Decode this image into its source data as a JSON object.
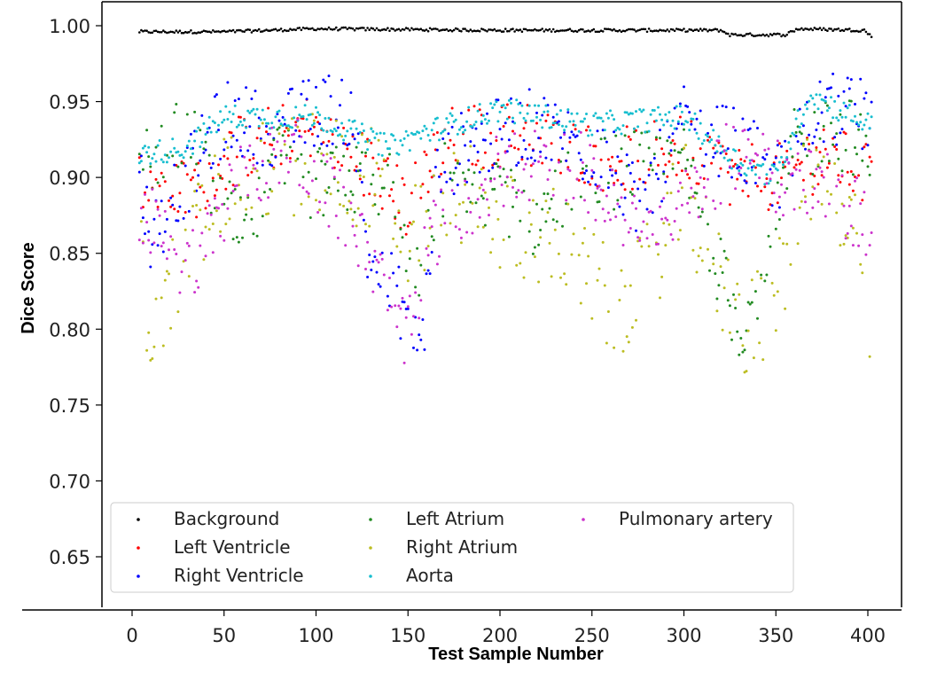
{
  "chart_data": {
    "type": "scatter",
    "title": "",
    "xlabel": "Test Sample Number",
    "ylabel": "Dice Score",
    "xlim": [
      -15,
      415
    ],
    "ylim": [
      0.62,
      1.015
    ],
    "xticks": [
      0,
      50,
      100,
      150,
      200,
      250,
      300,
      350,
      400
    ],
    "xtick_labels": [
      "0",
      "50",
      "100",
      "150",
      "200",
      "250",
      "300",
      "350",
      "400"
    ],
    "yticks": [
      0.65,
      0.7,
      0.75,
      0.8,
      0.85,
      0.9,
      0.95,
      1.0
    ],
    "ytick_labels": [
      "0.65",
      "0.70",
      "0.75",
      "0.80",
      "0.85",
      "0.90",
      "0.95",
      "1.00"
    ],
    "grid": false,
    "legend_position": "lower-left",
    "legend_columns": 3,
    "series": [
      {
        "name": "Background",
        "color": "#000000",
        "x_range": [
          4,
          402
        ],
        "anchors": [
          [
            4,
            0.996
          ],
          [
            50,
            0.996
          ],
          [
            100,
            0.998
          ],
          [
            200,
            0.997
          ],
          [
            320,
            0.997
          ],
          [
            325,
            0.994
          ],
          [
            355,
            0.994
          ],
          [
            362,
            0.998
          ],
          [
            398,
            0.997
          ],
          [
            402,
            0.993
          ]
        ],
        "noise": 0.001,
        "density": 1
      },
      {
        "name": "Left Ventricle",
        "color": "#ff0000",
        "x_range": [
          4,
          402
        ],
        "anchors": [
          [
            4,
            0.9
          ],
          [
            30,
            0.89
          ],
          [
            60,
            0.92
          ],
          [
            100,
            0.935
          ],
          [
            130,
            0.905
          ],
          [
            150,
            0.88
          ],
          [
            170,
            0.925
          ],
          [
            220,
            0.93
          ],
          [
            260,
            0.91
          ],
          [
            300,
            0.92
          ],
          [
            330,
            0.9
          ],
          [
            350,
            0.9
          ],
          [
            380,
            0.915
          ],
          [
            400,
            0.9
          ]
        ],
        "noise": 0.022,
        "density": 0.85
      },
      {
        "name": "Right Ventricle",
        "color": "#0000ff",
        "x_range": [
          4,
          402
        ],
        "anchors": [
          [
            4,
            0.91
          ],
          [
            10,
            0.86
          ],
          [
            30,
            0.9
          ],
          [
            50,
            0.94
          ],
          [
            80,
            0.93
          ],
          [
            100,
            0.945
          ],
          [
            120,
            0.945
          ],
          [
            128,
            0.85
          ],
          [
            140,
            0.83
          ],
          [
            150,
            0.81
          ],
          [
            158,
            0.79
          ],
          [
            165,
            0.9
          ],
          [
            180,
            0.92
          ],
          [
            220,
            0.935
          ],
          [
            260,
            0.91
          ],
          [
            275,
            0.88
          ],
          [
            300,
            0.935
          ],
          [
            330,
            0.92
          ],
          [
            350,
            0.9
          ],
          [
            375,
            0.945
          ],
          [
            400,
            0.94
          ]
        ],
        "noise": 0.025,
        "density": 0.9
      },
      {
        "name": "Left Atrium",
        "color": "#228b22",
        "x_range": [
          4,
          402
        ],
        "anchors": [
          [
            4,
            0.91
          ],
          [
            30,
            0.93
          ],
          [
            50,
            0.88
          ],
          [
            60,
            0.86
          ],
          [
            80,
            0.91
          ],
          [
            100,
            0.895
          ],
          [
            140,
            0.9
          ],
          [
            155,
            0.83
          ],
          [
            170,
            0.9
          ],
          [
            200,
            0.89
          ],
          [
            220,
            0.87
          ],
          [
            240,
            0.9
          ],
          [
            300,
            0.91
          ],
          [
            330,
            0.8
          ],
          [
            345,
            0.84
          ],
          [
            360,
            0.92
          ],
          [
            390,
            0.93
          ],
          [
            400,
            0.91
          ]
        ],
        "noise": 0.025,
        "density": 0.75
      },
      {
        "name": "Right Atrium",
        "color": "#bcbd22",
        "x_range": [
          4,
          402
        ],
        "anchors": [
          [
            4,
            0.86
          ],
          [
            10,
            0.8
          ],
          [
            30,
            0.85
          ],
          [
            50,
            0.9
          ],
          [
            100,
            0.91
          ],
          [
            130,
            0.9
          ],
          [
            150,
            0.86
          ],
          [
            180,
            0.89
          ],
          [
            200,
            0.87
          ],
          [
            230,
            0.86
          ],
          [
            250,
            0.83
          ],
          [
            270,
            0.81
          ],
          [
            300,
            0.89
          ],
          [
            330,
            0.8
          ],
          [
            350,
            0.82
          ],
          [
            370,
            0.91
          ],
          [
            395,
            0.85
          ],
          [
            402,
            0.8
          ]
        ],
        "noise": 0.035,
        "density": 0.7
      },
      {
        "name": "Aorta",
        "color": "#17becf",
        "x_range": [
          4,
          402
        ],
        "anchors": [
          [
            4,
            0.915
          ],
          [
            30,
            0.92
          ],
          [
            50,
            0.94
          ],
          [
            100,
            0.94
          ],
          [
            140,
            0.92
          ],
          [
            160,
            0.93
          ],
          [
            200,
            0.945
          ],
          [
            250,
            0.935
          ],
          [
            300,
            0.94
          ],
          [
            330,
            0.91
          ],
          [
            350,
            0.9
          ],
          [
            368,
            0.955
          ],
          [
            400,
            0.935
          ]
        ],
        "noise": 0.008,
        "density": 1
      },
      {
        "name": "Pulmonary artery",
        "color": "#cc33cc",
        "x_range": [
          4,
          402
        ],
        "anchors": [
          [
            4,
            0.88
          ],
          [
            30,
            0.84
          ],
          [
            60,
            0.9
          ],
          [
            90,
            0.92
          ],
          [
            120,
            0.87
          ],
          [
            140,
            0.82
          ],
          [
            150,
            0.79
          ],
          [
            160,
            0.86
          ],
          [
            200,
            0.905
          ],
          [
            240,
            0.91
          ],
          [
            270,
            0.87
          ],
          [
            300,
            0.88
          ],
          [
            330,
            0.92
          ],
          [
            350,
            0.9
          ],
          [
            380,
            0.89
          ],
          [
            402,
            0.87
          ]
        ],
        "noise": 0.025,
        "density": 0.85
      }
    ]
  }
}
